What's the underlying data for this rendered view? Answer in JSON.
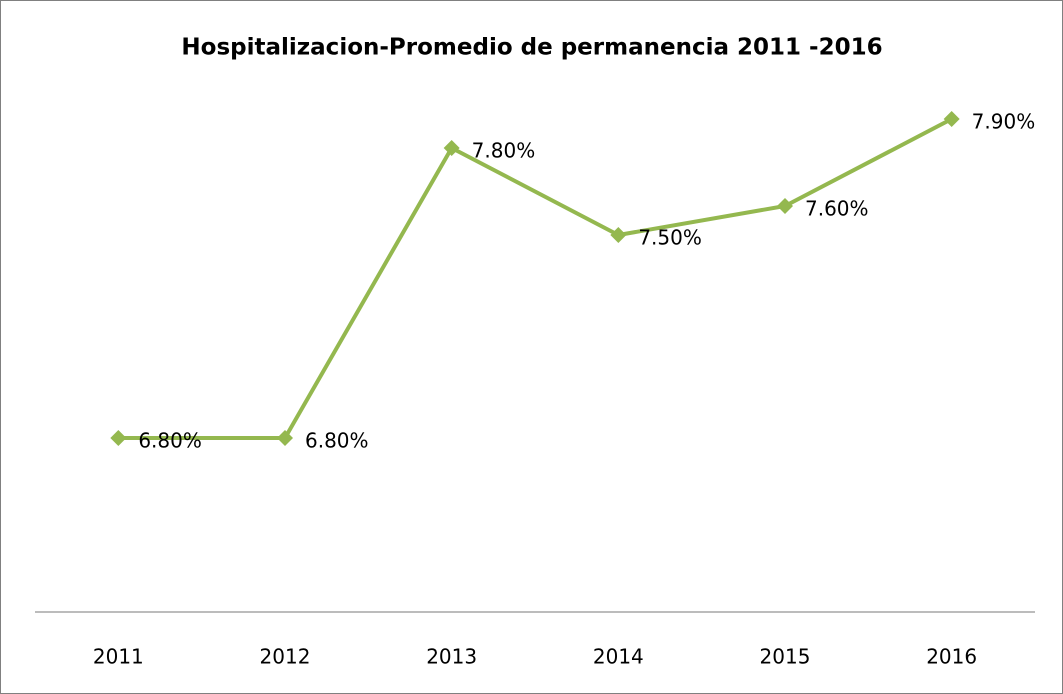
{
  "chart_data": {
    "type": "line",
    "title": "Hospitalizacion-Promedio de permanencia 2011 -2016",
    "categories": [
      "2011",
      "2012",
      "2013",
      "2014",
      "2015",
      "2016"
    ],
    "series": [
      {
        "name": "Promedio de permanencia",
        "color": "#94b84f",
        "values": [
          6.8,
          6.8,
          7.8,
          7.5,
          7.6,
          7.9
        ],
        "value_labels": [
          "6.80%",
          "6.80%",
          "7.80%",
          "7.50%",
          "7.60%",
          "7.90%"
        ]
      }
    ],
    "ylim": [
      6.2,
      8.0
    ],
    "legend": false
  }
}
